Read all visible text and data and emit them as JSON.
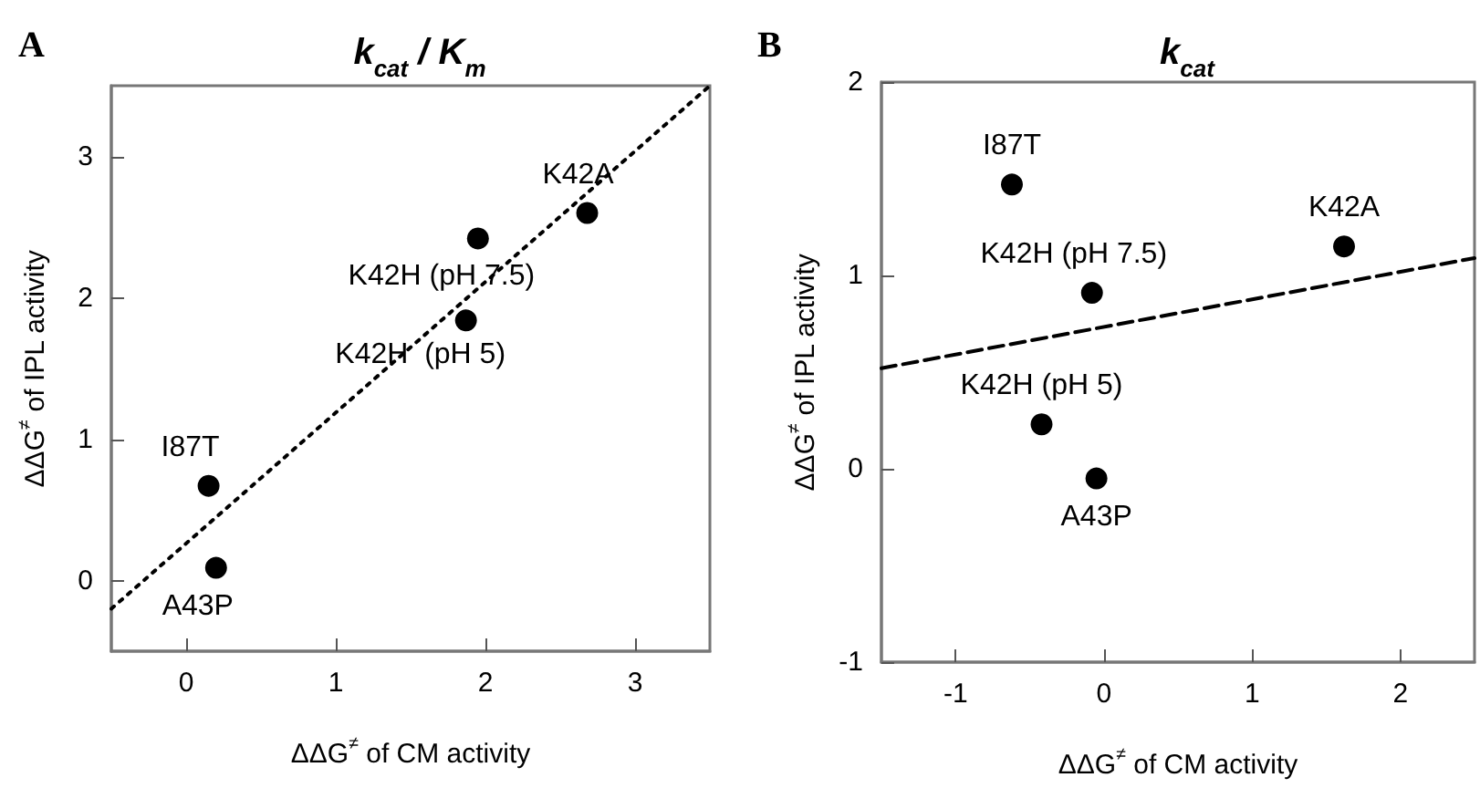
{
  "chart_data": [
    {
      "type": "scatter",
      "title": "k$_{cat}$ / K$_{m}$",
      "xlabel": "ΔΔG$^{≠}$ of CM activity",
      "ylabel": "ΔΔG$^{≠}$ of IPL activity",
      "annotations": [
        "A"
      ],
      "xlim": [
        -0.5,
        3.5
      ],
      "xticks": [
        0,
        1,
        2,
        3
      ],
      "ylim": [
        -0.5,
        3.5
      ],
      "yticks": [
        0,
        1,
        2,
        3
      ],
      "grid": false,
      "series": [
        {
          "type": "scatter",
          "color": "#000000",
          "marker": "circle",
          "x": [
            0.15,
            0.2,
            1.87,
            1.95,
            2.68
          ],
          "values": [
            0.67,
            0.09,
            1.84,
            2.42,
            2.6
          ],
          "value_labels": [
            "I87T",
            "A43P",
            "K42H  (pH 5)",
            "K42H (pH 7.5)",
            "K42A"
          ]
        },
        {
          "type": "line",
          "color": "#000000",
          "marker": "none",
          "line_style": "dotted",
          "x": [
            -0.5,
            3.5
          ],
          "values": [
            -0.2,
            3.5
          ]
        }
      ]
    },
    {
      "type": "scatter",
      "title": "k$_{cat}$",
      "xlabel": "ΔΔG$^{≠}$ of CM activity",
      "ylabel": "ΔΔG$^{≠}$ of IPL activity",
      "annotations": [
        "B"
      ],
      "xlim": [
        -1.5,
        2.5
      ],
      "xticks": [
        -1,
        0,
        1,
        2
      ],
      "ylim": [
        -1,
        2
      ],
      "yticks": [
        -1,
        0,
        1,
        2
      ],
      "grid": false,
      "series": [
        {
          "type": "scatter",
          "color": "#000000",
          "marker": "circle",
          "x": [
            -0.62,
            -0.08,
            -0.42,
            -0.05,
            1.62
          ],
          "values": [
            1.47,
            0.91,
            0.23,
            -0.05,
            1.15
          ],
          "value_labels": [
            "I87T",
            "K42H (pH 7.5)",
            "K42H (pH 5)",
            "A43P",
            "K42A"
          ]
        },
        {
          "type": "line",
          "color": "#000000",
          "marker": "none",
          "line_style": "dashed",
          "x": [
            -1.5,
            2.5
          ],
          "values": [
            0.52,
            1.09
          ]
        }
      ]
    }
  ]
}
